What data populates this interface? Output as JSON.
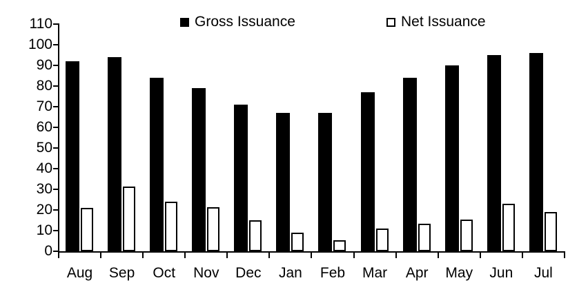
{
  "chart_data": {
    "type": "bar",
    "title": "",
    "categories": [
      "Aug",
      "Sep",
      "Oct",
      "Nov",
      "Dec",
      "Jan",
      "Feb",
      "Mar",
      "Apr",
      "May",
      "Jun",
      "Jul"
    ],
    "series": [
      {
        "name": "Gross Issuance",
        "style": "solid-black",
        "values": [
          92,
          94,
          84,
          79,
          71,
          67,
          67,
          77,
          84,
          90,
          95,
          96
        ]
      },
      {
        "name": "Net Issuance",
        "style": "white-outlined",
        "values": [
          21,
          31.5,
          24,
          21.5,
          15,
          9,
          5.5,
          11,
          13.5,
          15.5,
          23,
          19
        ]
      }
    ],
    "ylim": [
      0,
      110
    ],
    "yticks": [
      0,
      10,
      20,
      30,
      40,
      50,
      60,
      70,
      80,
      90,
      100,
      110
    ],
    "grid": false,
    "legend_position": "top-center",
    "colors": {
      "gross_fill": "#000000",
      "net_fill": "#ffffff",
      "net_border": "#000000",
      "axis": "#000000",
      "text": "#000000",
      "background": "#ffffff"
    }
  }
}
